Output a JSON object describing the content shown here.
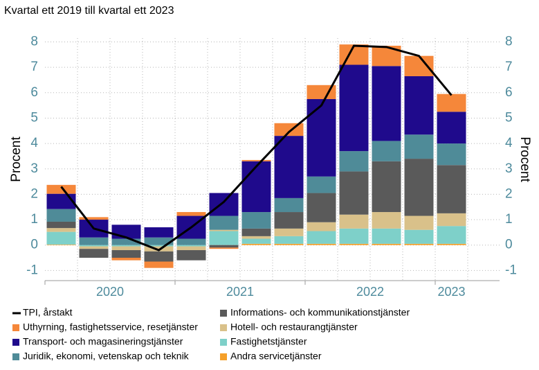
{
  "chart_data": {
    "type": "bar",
    "stacked": true,
    "title": "Kvartal ett 2019 till kvartal ett 2023",
    "ylabel": "Procent",
    "y2label": "Procent",
    "year_groups": [
      {
        "label": "2020",
        "count": 4
      },
      {
        "label": "2021",
        "count": 4
      },
      {
        "label": "2022",
        "count": 4
      },
      {
        "label": "2023",
        "count": 1
      }
    ],
    "categories": [
      null,
      null,
      null,
      null,
      null,
      null,
      null,
      null,
      null,
      null,
      null,
      null,
      null
    ],
    "ylim": [
      -1.4,
      8.15
    ],
    "yticks": [
      -1,
      0,
      1,
      2,
      3,
      4,
      5,
      6,
      7,
      8
    ],
    "y2lim": [
      -1.4,
      8.15
    ],
    "y2ticks": [
      -1,
      0,
      1,
      2,
      3,
      4,
      5,
      6,
      7,
      8
    ],
    "grid": true,
    "series": [
      {
        "name": "TPI, årstakt",
        "type": "line",
        "color": "#000000",
        "values": [
          2.3,
          0.65,
          0.3,
          -0.2,
          0.7,
          1.7,
          3.1,
          4.45,
          5.5,
          7.85,
          7.8,
          7.45,
          5.9
        ]
      },
      {
        "name": "Uthyrning, fastighetsservice, resetjänster",
        "color": "#f5873a",
        "values": [
          0.35,
          0.1,
          -0.1,
          -0.25,
          0.15,
          -0.05,
          0.05,
          0.5,
          0.55,
          0.8,
          0.8,
          0.8,
          0.7
        ]
      },
      {
        "name": "Transport- och magasineringstjänster",
        "color": "#1f0a8c",
        "values": [
          0.6,
          0.7,
          0.55,
          0.4,
          0.9,
          0.9,
          2.0,
          2.45,
          3.05,
          3.4,
          2.95,
          2.3,
          1.25
        ]
      },
      {
        "name": "Juridik, ekonomi, vetenskap och teknik",
        "color": "#4f8b98",
        "values": [
          0.5,
          0.3,
          0.25,
          0.3,
          0.25,
          0.55,
          0.65,
          0.55,
          0.65,
          0.8,
          0.8,
          0.95,
          0.85
        ]
      },
      {
        "name": "Informations- och kommunikationstjänster",
        "color": "#5a5a5a",
        "values": [
          0.25,
          -0.35,
          -0.3,
          -0.4,
          -0.4,
          -0.1,
          0.3,
          0.65,
          1.15,
          1.7,
          2.0,
          2.25,
          1.9
        ]
      },
      {
        "name": "Hotell- och restaurangtjänster",
        "color": "#d9c18a",
        "values": [
          0.15,
          -0.1,
          -0.15,
          -0.2,
          -0.15,
          0.05,
          0.1,
          0.3,
          0.35,
          0.55,
          0.65,
          0.55,
          0.5
        ]
      },
      {
        "name": "Fastighetstjänster",
        "color": "#7ed0c9",
        "values": [
          0.5,
          -0.05,
          -0.05,
          -0.05,
          -0.05,
          0.55,
          0.2,
          0.3,
          0.5,
          0.6,
          0.6,
          0.55,
          0.7
        ]
      },
      {
        "name": "Andra servicetjänster",
        "color": "#f5a02a",
        "values": [
          0.02,
          0,
          0,
          0,
          0,
          0,
          0.05,
          0.05,
          0.05,
          0.05,
          0.05,
          0.05,
          0.05
        ]
      }
    ]
  }
}
